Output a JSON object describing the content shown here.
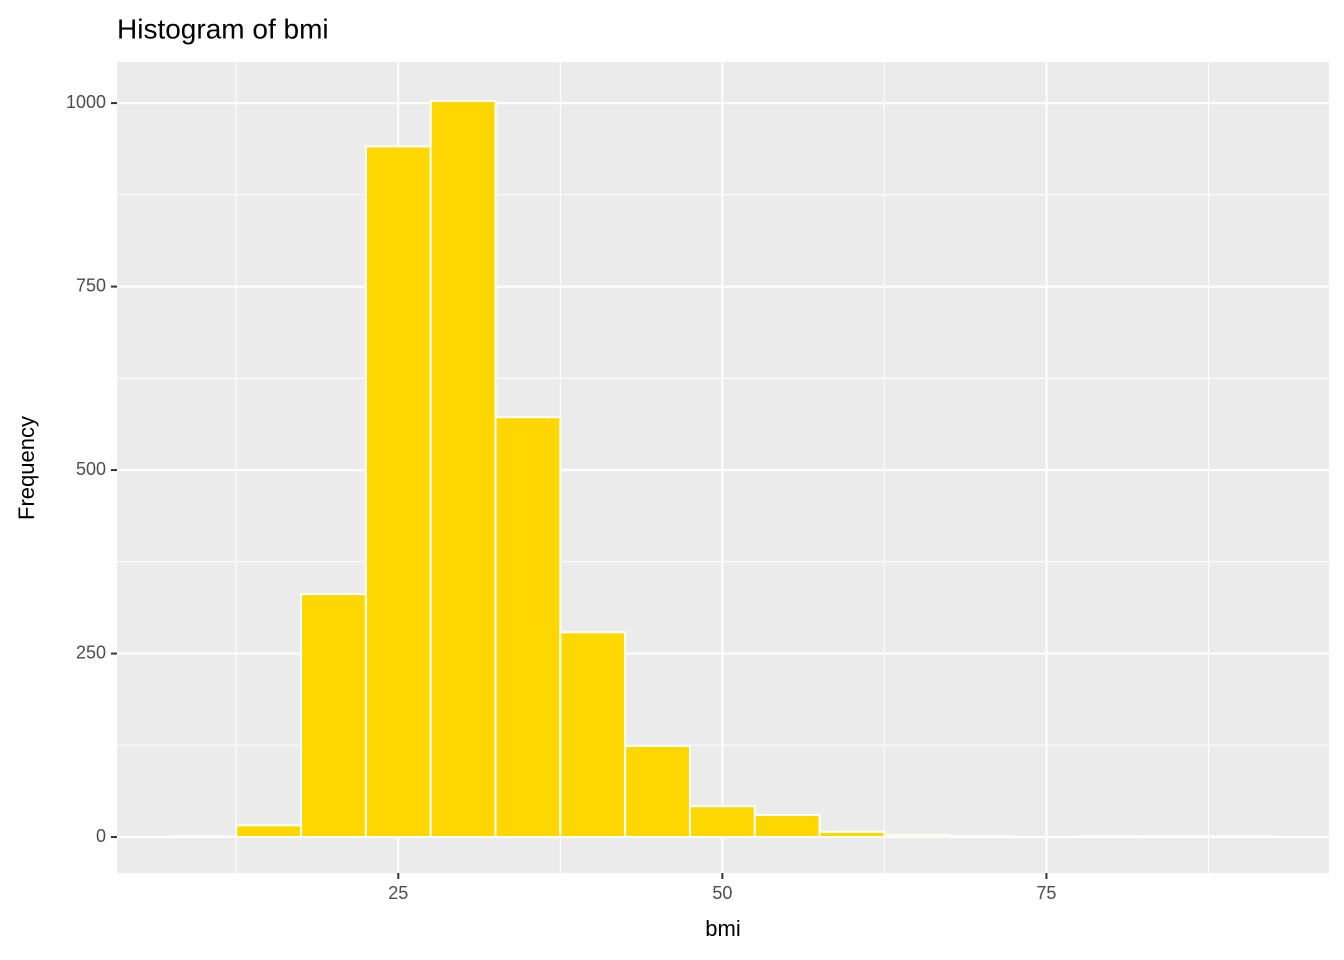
{
  "chart_data": {
    "type": "histogram",
    "title": "Histogram of bmi",
    "x_label": "bmi",
    "y_label": "Frequency",
    "bins": [
      7.5,
      12.5,
      17.5,
      22.5,
      27.5,
      32.5,
      37.5,
      42.5,
      47.5,
      52.5,
      57.5,
      62.5,
      67.5,
      72.5,
      77.5,
      82.5,
      87.5,
      92.5
    ],
    "values": [
      1,
      16,
      331,
      941,
      1003,
      572,
      279,
      124,
      42,
      30,
      7,
      3,
      1,
      0,
      1,
      1,
      1
    ],
    "color": "#FFD700",
    "xlim": [
      3.3,
      96.8
    ],
    "xticks": [
      25,
      50,
      75
    ],
    "ylim": [
      -49,
      1056
    ],
    "yticks": [
      0,
      250,
      500,
      750,
      1000
    ],
    "grid": true
  }
}
